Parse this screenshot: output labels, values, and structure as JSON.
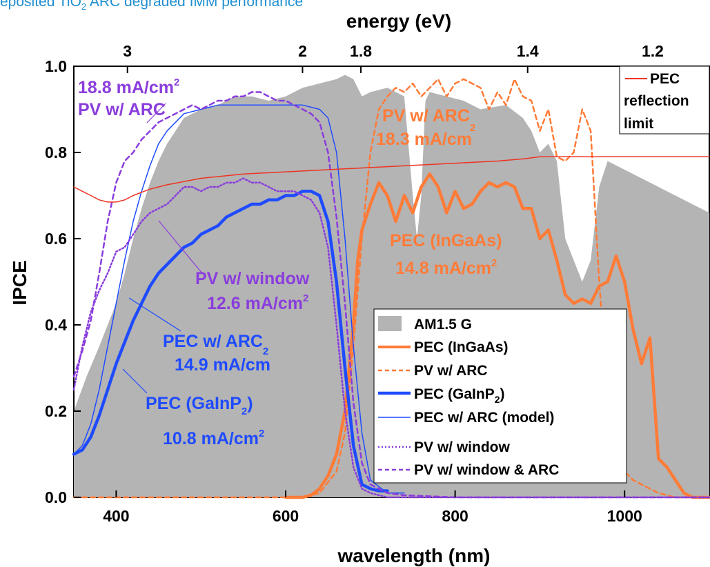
{
  "caption": {
    "prefix": "eposited TiO",
    "sub": "2",
    "suffix": " ARC degraded IMM performance"
  },
  "chart_data": {
    "type": "line",
    "title": "",
    "xlabel": "wavelength (nm)",
    "ylabel": "IPCE",
    "top_xlabel": "energy (eV)",
    "xlim": [
      350,
      1100
    ],
    "ylim": [
      0,
      1.0
    ],
    "x_ticks": [
      "400",
      "600",
      "800",
      "1000"
    ],
    "x_tick_values": [
      400,
      600,
      800,
      1000
    ],
    "y_ticks": [
      "0.0",
      "0.2",
      "0.4",
      "0.6",
      "0.8",
      "1.0"
    ],
    "y_tick_values": [
      0,
      0.2,
      0.4,
      0.6,
      0.8,
      1.0
    ],
    "top_ticks": [
      "3",
      "2",
      "1.8",
      "1.4",
      "1.2"
    ],
    "top_tick_values": [
      3,
      2,
      1.8,
      1.4,
      1.2
    ],
    "grid": false,
    "legend_position": "bottom-right",
    "series": [
      {
        "name": "AM1.5 G",
        "style": "fill",
        "color": "#b4b4b4",
        "x": [
          350,
          365,
          380,
          390,
          400,
          410,
          420,
          430,
          440,
          450,
          460,
          470,
          480,
          500,
          520,
          540,
          560,
          580,
          600,
          620,
          640,
          660,
          670,
          680,
          690,
          700,
          720,
          740,
          750,
          755,
          760,
          765,
          770,
          790,
          810,
          830,
          860,
          880,
          890,
          900,
          910,
          920,
          930,
          940,
          950,
          960,
          970,
          980,
          990,
          1000,
          1020,
          1040,
          1060,
          1080,
          1100
        ],
        "y": [
          0.2,
          0.28,
          0.35,
          0.4,
          0.45,
          0.52,
          0.6,
          0.67,
          0.73,
          0.78,
          0.82,
          0.85,
          0.88,
          0.9,
          0.91,
          0.93,
          0.93,
          0.92,
          0.93,
          0.95,
          0.96,
          0.97,
          0.98,
          0.97,
          0.93,
          0.94,
          0.95,
          0.93,
          0.7,
          0.6,
          0.7,
          0.92,
          0.94,
          0.93,
          0.92,
          0.9,
          0.91,
          0.88,
          0.85,
          0.8,
          0.82,
          0.78,
          0.6,
          0.55,
          0.5,
          0.55,
          0.72,
          0.78,
          0.77,
          0.76,
          0.74,
          0.72,
          0.7,
          0.68,
          0.66
        ]
      },
      {
        "name": "PEC (InGaAs)",
        "style": "thick",
        "color": "#ff7b38",
        "x": [
          600,
          620,
          630,
          640,
          650,
          660,
          670,
          680,
          685,
          690,
          700,
          710,
          720,
          730,
          740,
          750,
          760,
          770,
          780,
          790,
          800,
          810,
          820,
          830,
          840,
          850,
          860,
          870,
          880,
          890,
          900,
          910,
          920,
          930,
          940,
          950,
          960,
          970,
          980,
          990,
          1000,
          1010,
          1020,
          1030,
          1040,
          1050,
          1060,
          1070,
          1080,
          1090,
          1100
        ],
        "y": [
          0,
          0,
          0.005,
          0.02,
          0.05,
          0.1,
          0.2,
          0.4,
          0.55,
          0.62,
          0.68,
          0.73,
          0.7,
          0.64,
          0.7,
          0.66,
          0.72,
          0.75,
          0.72,
          0.66,
          0.71,
          0.67,
          0.68,
          0.71,
          0.73,
          0.72,
          0.73,
          0.72,
          0.67,
          0.67,
          0.6,
          0.62,
          0.55,
          0.47,
          0.45,
          0.46,
          0.45,
          0.49,
          0.5,
          0.56,
          0.5,
          0.39,
          0.31,
          0.37,
          0.09,
          0.07,
          0.04,
          0.01,
          0,
          0,
          0
        ]
      },
      {
        "name": "PV w/ ARC",
        "style": "dashed",
        "color": "#ff7b38",
        "x": [
          350,
          360,
          380,
          400,
          500,
          600,
          620,
          640,
          660,
          670,
          680,
          690,
          700,
          710,
          720,
          730,
          740,
          750,
          760,
          770,
          780,
          790,
          800,
          810,
          820,
          830,
          840,
          850,
          860,
          870,
          880,
          890,
          900,
          910,
          920,
          930,
          940,
          950,
          960,
          970,
          980,
          990,
          1000,
          1010,
          1020,
          1030,
          1040,
          1050,
          1060,
          1070,
          1080,
          1090,
          1100
        ],
        "y": [
          0,
          0,
          0,
          0,
          0,
          0,
          0,
          0.01,
          0.06,
          0.15,
          0.35,
          0.6,
          0.8,
          0.9,
          0.93,
          0.95,
          0.94,
          0.96,
          0.93,
          0.95,
          0.97,
          0.93,
          0.96,
          0.97,
          0.96,
          0.95,
          0.9,
          0.94,
          0.91,
          0.97,
          0.93,
          0.92,
          0.85,
          0.9,
          0.79,
          0.78,
          0.8,
          0.9,
          0.85,
          0.5,
          0.25,
          0.14,
          0.06,
          0.04,
          0.03,
          0.02,
          0.01,
          0.005,
          0,
          0,
          0,
          0,
          0
        ]
      },
      {
        "name": "PEC (GaInP2)",
        "style": "thick",
        "color": "#1f4bff",
        "x": [
          350,
          360,
          370,
          380,
          390,
          400,
          410,
          420,
          430,
          440,
          450,
          460,
          470,
          480,
          490,
          500,
          510,
          520,
          530,
          540,
          550,
          560,
          570,
          580,
          590,
          600,
          610,
          620,
          630,
          640,
          650,
          660,
          670,
          680,
          690,
          700,
          710,
          720
        ],
        "y": [
          0.1,
          0.11,
          0.14,
          0.19,
          0.25,
          0.31,
          0.36,
          0.41,
          0.45,
          0.49,
          0.52,
          0.54,
          0.56,
          0.58,
          0.59,
          0.61,
          0.62,
          0.63,
          0.65,
          0.66,
          0.67,
          0.68,
          0.68,
          0.69,
          0.69,
          0.7,
          0.7,
          0.71,
          0.71,
          0.7,
          0.64,
          0.5,
          0.3,
          0.12,
          0.03,
          0.02,
          0.015,
          0.015
        ]
      },
      {
        "name": "PEC w/ ARC (model)",
        "style": "thin",
        "color": "#1f4bff",
        "x": [
          350,
          360,
          370,
          380,
          390,
          400,
          410,
          420,
          430,
          440,
          450,
          460,
          470,
          480,
          500,
          520,
          540,
          560,
          580,
          600,
          620,
          640,
          650,
          660,
          670,
          680,
          690,
          700,
          720,
          740
        ],
        "y": [
          0.1,
          0.12,
          0.17,
          0.25,
          0.35,
          0.45,
          0.55,
          0.64,
          0.71,
          0.77,
          0.82,
          0.85,
          0.87,
          0.89,
          0.9,
          0.91,
          0.91,
          0.91,
          0.91,
          0.91,
          0.91,
          0.9,
          0.88,
          0.8,
          0.6,
          0.35,
          0.15,
          0.04,
          0.01,
          0.01
        ]
      },
      {
        "name": "PV w/ window",
        "style": "dotted",
        "color": "#8a3ddc",
        "x": [
          350,
          360,
          370,
          380,
          390,
          400,
          410,
          420,
          430,
          440,
          450,
          460,
          470,
          480,
          490,
          500,
          510,
          520,
          530,
          540,
          550,
          560,
          570,
          580,
          590,
          600,
          610,
          620,
          630,
          640,
          650,
          660,
          670,
          680,
          690,
          700,
          710,
          720,
          740,
          800,
          900,
          1000,
          1100
        ],
        "y": [
          0.25,
          0.35,
          0.43,
          0.48,
          0.52,
          0.57,
          0.58,
          0.61,
          0.64,
          0.66,
          0.67,
          0.68,
          0.7,
          0.72,
          0.72,
          0.71,
          0.72,
          0.72,
          0.73,
          0.73,
          0.74,
          0.73,
          0.73,
          0.72,
          0.71,
          0.71,
          0.71,
          0.7,
          0.69,
          0.66,
          0.58,
          0.4,
          0.2,
          0.07,
          0.02,
          0.01,
          0.005,
          0,
          0,
          0,
          0,
          0,
          0
        ]
      },
      {
        "name": "PV w/ window & ARC",
        "style": "dashed",
        "color": "#8a3ddc",
        "x": [
          350,
          360,
          370,
          380,
          390,
          400,
          410,
          420,
          430,
          440,
          450,
          460,
          470,
          480,
          490,
          500,
          510,
          520,
          530,
          540,
          550,
          560,
          570,
          580,
          590,
          600,
          610,
          620,
          630,
          640,
          650,
          660,
          670,
          680,
          690,
          700,
          720,
          740,
          800,
          900,
          1000,
          1100
        ],
        "y": [
          0.28,
          0.34,
          0.41,
          0.52,
          0.64,
          0.73,
          0.78,
          0.8,
          0.83,
          0.85,
          0.87,
          0.88,
          0.89,
          0.9,
          0.91,
          0.9,
          0.91,
          0.92,
          0.92,
          0.93,
          0.93,
          0.94,
          0.94,
          0.93,
          0.92,
          0.92,
          0.91,
          0.9,
          0.89,
          0.87,
          0.8,
          0.65,
          0.45,
          0.22,
          0.08,
          0.03,
          0.01,
          0.005,
          0,
          0,
          0,
          0
        ]
      },
      {
        "name": "PEC reflection limit",
        "style": "thin",
        "color": "#ee3322",
        "x": [
          350,
          360,
          370,
          380,
          390,
          400,
          410,
          420,
          440,
          460,
          500,
          550,
          600,
          650,
          700,
          750,
          800,
          850,
          880,
          900,
          950,
          1000,
          1050,
          1100
        ],
        "y": [
          0.72,
          0.71,
          0.7,
          0.69,
          0.685,
          0.685,
          0.69,
          0.7,
          0.715,
          0.725,
          0.74,
          0.75,
          0.755,
          0.76,
          0.765,
          0.77,
          0.775,
          0.78,
          0.785,
          0.79,
          0.79,
          0.79,
          0.79,
          0.79
        ]
      }
    ],
    "annotations": [
      {
        "lines": [
          "18.8 mA/cm",
          "PV w/ ARC"
        ],
        "sup": "2",
        "color": "#8a3ddc"
      },
      {
        "lines": [
          "PV w/ window",
          "12.6 mA/cm"
        ],
        "sup": "2",
        "color": "#8a3ddc"
      },
      {
        "lines": [
          "PEC w/ ARC",
          "14.9 mA/cm"
        ],
        "sup": "2",
        "color": "#1f4bff"
      },
      {
        "lines": [
          "PEC (GaInP",
          "10.8 mA/cm"
        ],
        "color": "#1f4bff"
      },
      {
        "lines": [
          "PV w/ ARC",
          "18.3 mA/cm"
        ],
        "sup": "2",
        "color": "#ff7b38"
      },
      {
        "lines": [
          "PEC (InGaAs)",
          "14.8 mA/cm"
        ],
        "sup": "2",
        "color": "#ff7b38"
      }
    ],
    "top_legend": {
      "lines": [
        "PEC",
        "reflection",
        "limit"
      ]
    },
    "legend": [
      {
        "label": "AM1.5 G"
      },
      {
        "label": "PEC (InGaAs)"
      },
      {
        "label": "PV w/ ARC"
      },
      {
        "label": "PEC (GaInP",
        "sub": "2",
        "tail": ")"
      },
      {
        "label": "PEC w/ ARC (model)"
      },
      {
        "label": "PV w/ window"
      },
      {
        "label": "PV w/ window & ARC"
      }
    ]
  }
}
